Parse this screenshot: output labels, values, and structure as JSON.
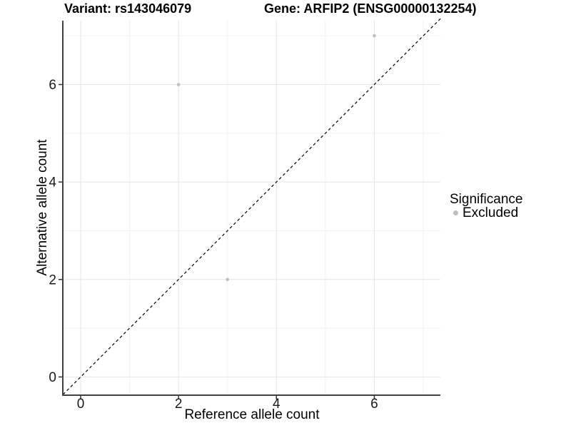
{
  "titles": {
    "variant": "Variant: rs143046079",
    "gene": "Gene: ARFIP2 (ENSG00000132254)"
  },
  "chart_data": {
    "type": "scatter",
    "title_left": "Variant: rs143046079",
    "title_right": "Gene: ARFIP2 (ENSG00000132254)",
    "xlabel": "Reference allele count",
    "ylabel": "Alternative allele count",
    "xlim": [
      -0.35,
      7.35
    ],
    "ylim": [
      -0.36,
      7.31
    ],
    "x_ticks": [
      0,
      2,
      4,
      6
    ],
    "y_ticks": [
      0,
      2,
      4,
      6
    ],
    "x_minor_gridlines": [
      1,
      3,
      5,
      7
    ],
    "y_minor_gridlines": [
      1,
      3,
      5,
      7
    ],
    "grid": true,
    "legend_position": "right",
    "series": [
      {
        "name": "Excluded",
        "color": "#bebebe",
        "points": [
          {
            "x": 2,
            "y": 6
          },
          {
            "x": 3,
            "y": 2
          },
          {
            "x": 6,
            "y": 7
          }
        ]
      }
    ],
    "reference_line": {
      "description": "identity line y = x",
      "style": "dashed",
      "color": "#000000",
      "from": -0.36,
      "to": 7.36
    },
    "legend": {
      "title": "Significance",
      "items": [
        {
          "label": "Excluded",
          "color": "#bebebe"
        }
      ]
    }
  },
  "colors": {
    "axis_line": "#404040",
    "tick_mark": "#333333",
    "tick_label": "#1a1a1a",
    "grid_major": "#e4e4e4",
    "grid_minor": "#f2f2f2",
    "point": "#bebebe",
    "background": "#ffffff"
  }
}
